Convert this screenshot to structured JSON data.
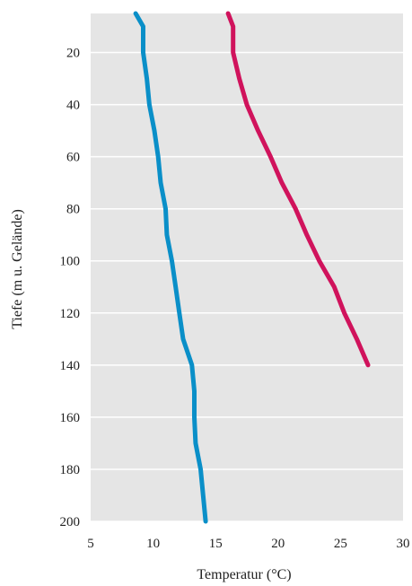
{
  "chart_data": {
    "type": "line",
    "title": "",
    "xlabel": "Temperatur (°C)",
    "ylabel": "Tiefe (m u. Gelände)",
    "xlim": [
      5,
      30
    ],
    "ylim": [
      200,
      5
    ],
    "y_inverted": true,
    "x_ticks": [
      5,
      10,
      15,
      20,
      25,
      30
    ],
    "y_ticks": [
      20,
      40,
      60,
      80,
      100,
      120,
      140,
      160,
      180,
      200
    ],
    "grid": "horizontal",
    "legend": "none",
    "background_color": "#e5e5e5",
    "series": [
      {
        "color": "#0a8fc8",
        "points": [
          [
            8.6,
            5
          ],
          [
            9.2,
            10
          ],
          [
            9.2,
            20
          ],
          [
            9.5,
            30
          ],
          [
            9.7,
            40
          ],
          [
            10.1,
            50
          ],
          [
            10.4,
            60
          ],
          [
            10.6,
            70
          ],
          [
            11.0,
            80
          ],
          [
            11.1,
            90
          ],
          [
            11.5,
            100
          ],
          [
            11.8,
            110
          ],
          [
            12.1,
            120
          ],
          [
            12.4,
            130
          ],
          [
            13.1,
            140
          ],
          [
            13.3,
            150
          ],
          [
            13.3,
            160
          ],
          [
            13.4,
            170
          ],
          [
            13.8,
            180
          ],
          [
            14.0,
            190
          ],
          [
            14.2,
            200
          ]
        ]
      },
      {
        "color": "#d0135c",
        "points": [
          [
            16.0,
            5
          ],
          [
            16.4,
            10
          ],
          [
            16.4,
            20
          ],
          [
            16.9,
            30
          ],
          [
            17.5,
            40
          ],
          [
            18.4,
            50
          ],
          [
            19.4,
            60
          ],
          [
            20.3,
            70
          ],
          [
            21.4,
            80
          ],
          [
            22.3,
            90
          ],
          [
            23.3,
            100
          ],
          [
            24.5,
            110
          ],
          [
            25.3,
            120
          ],
          [
            26.3,
            130
          ],
          [
            27.2,
            140
          ]
        ]
      }
    ]
  }
}
